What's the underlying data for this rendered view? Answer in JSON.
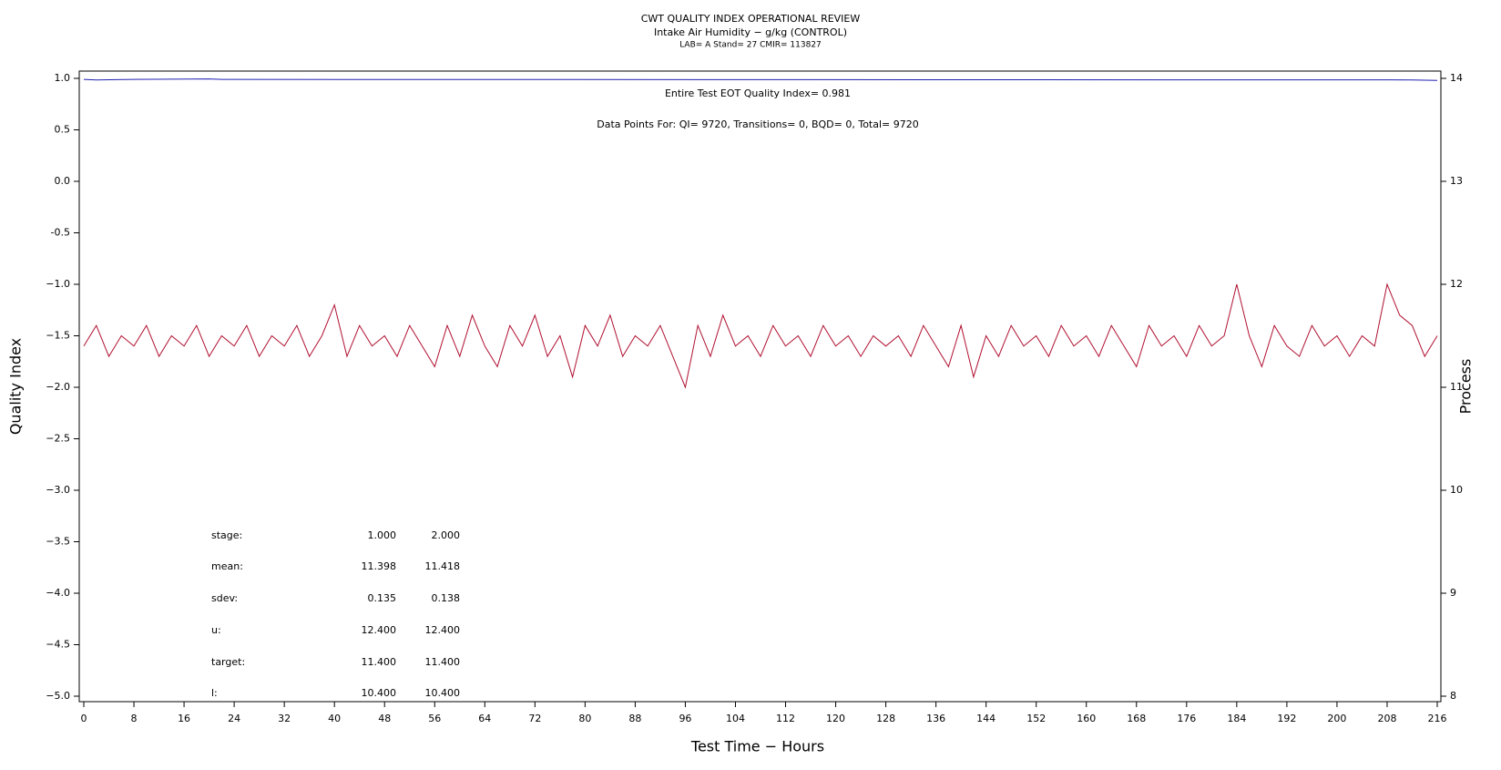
{
  "chart_data": {
    "type": "line",
    "title": "CWT QUALITY INDEX OPERATIONAL REVIEW",
    "subtitle": "Intake Air Humidity − g/kg (CONTROL)",
    "subtitle2": "LAB= A Stand= 27 CMIR= 113827",
    "xlabel": "Test Time − Hours",
    "ylabel": "Quality Index",
    "y2label": "Process",
    "annotations": [
      "Entire Test EOT Quality Index=   0.981",
      "Data Points For: QI=  9720, Transitions=     0, BQD=     0, Total=  9720"
    ],
    "stats_table": [
      [
        "stage:",
        "1.000",
        "2.000"
      ],
      [
        "mean:",
        "11.398",
        "11.418"
      ],
      [
        "sdev:",
        "0.135",
        "0.138"
      ],
      [
        "u:",
        "12.400",
        "12.400"
      ],
      [
        "target:",
        "11.400",
        "11.400"
      ],
      [
        "l:",
        "10.400",
        "10.400"
      ]
    ],
    "xlim": [
      0,
      216
    ],
    "xticks": [
      0,
      8,
      16,
      24,
      32,
      40,
      48,
      56,
      64,
      72,
      80,
      88,
      96,
      104,
      112,
      120,
      128,
      136,
      144,
      152,
      160,
      168,
      176,
      184,
      192,
      200,
      208,
      216
    ],
    "ylim": [
      -5,
      1
    ],
    "yticks": [
      {
        "value": 1,
        "label": "1.0"
      },
      0.5,
      {
        "value": 0,
        "label": "0.0"
      },
      -0.5,
      {
        "value": -1,
        "label": "−1.0"
      },
      {
        "value": -1.5,
        "label": "−1.5"
      },
      {
        "value": -2,
        "label": "−2.0"
      },
      {
        "value": -2.5,
        "label": "−2.5"
      },
      {
        "value": -3,
        "label": "−3.0"
      },
      {
        "value": -3.5,
        "label": "−3.5"
      },
      {
        "value": -4,
        "label": "−4.0"
      },
      {
        "value": -4.5,
        "label": "−4.5"
      },
      {
        "value": -5,
        "label": "−5.0"
      }
    ],
    "y2lim": [
      8,
      14
    ],
    "y2ticks": [
      8,
      9,
      10,
      11,
      12,
      13,
      14
    ],
    "series": [
      {
        "name": "Quality Index",
        "color": "#2020b0",
        "x": [
          0,
          2,
          8,
          20,
          22,
          212,
          216
        ],
        "values": [
          0.99,
          0.985,
          0.99,
          0.995,
          0.99,
          0.985,
          0.98
        ]
      },
      {
        "name": "Process",
        "color": "#b01030",
        "axis": "y2",
        "x": [
          0,
          2,
          4,
          6,
          8,
          10,
          12,
          14,
          16,
          18,
          20,
          22,
          24,
          26,
          28,
          30,
          32,
          34,
          36,
          38,
          40,
          42,
          44,
          46,
          48,
          50,
          52,
          54,
          56,
          58,
          60,
          62,
          64,
          66,
          68,
          70,
          72,
          74,
          76,
          78,
          80,
          82,
          84,
          86,
          88,
          90,
          92,
          94,
          96,
          98,
          100,
          102,
          104,
          106,
          108,
          110,
          112,
          114,
          116,
          118,
          120,
          122,
          124,
          126,
          128,
          130,
          132,
          134,
          136,
          138,
          140,
          142,
          144,
          146,
          148,
          150,
          152,
          154,
          156,
          158,
          160,
          162,
          164,
          166,
          168,
          170,
          172,
          174,
          176,
          178,
          180,
          182,
          184,
          186,
          188,
          190,
          192,
          194,
          196,
          198,
          200,
          202,
          204,
          206,
          208,
          210,
          212,
          214,
          216
        ],
        "values": [
          11.4,
          11.6,
          11.3,
          11.5,
          11.4,
          11.6,
          11.3,
          11.5,
          11.4,
          11.6,
          11.3,
          11.5,
          11.4,
          11.6,
          11.3,
          11.5,
          11.4,
          11.6,
          11.3,
          11.5,
          11.8,
          11.3,
          11.6,
          11.4,
          11.5,
          11.3,
          11.6,
          11.4,
          11.2,
          11.6,
          11.3,
          11.7,
          11.4,
          11.2,
          11.6,
          11.4,
          11.7,
          11.3,
          11.5,
          11.1,
          11.6,
          11.4,
          11.7,
          11.3,
          11.5,
          11.4,
          11.6,
          11.3,
          11.0,
          11.6,
          11.3,
          11.7,
          11.4,
          11.5,
          11.3,
          11.6,
          11.4,
          11.5,
          11.3,
          11.6,
          11.4,
          11.5,
          11.3,
          11.5,
          11.4,
          11.5,
          11.3,
          11.6,
          11.4,
          11.2,
          11.6,
          11.1,
          11.5,
          11.3,
          11.6,
          11.4,
          11.5,
          11.3,
          11.6,
          11.4,
          11.5,
          11.3,
          11.6,
          11.4,
          11.2,
          11.6,
          11.4,
          11.5,
          11.3,
          11.6,
          11.4,
          11.5,
          12.0,
          11.5,
          11.2,
          11.6,
          11.4,
          11.3,
          11.6,
          11.4,
          11.5,
          11.3,
          11.5,
          11.4,
          12.0,
          11.7,
          11.6,
          11.3,
          11.5
        ]
      }
    ]
  }
}
